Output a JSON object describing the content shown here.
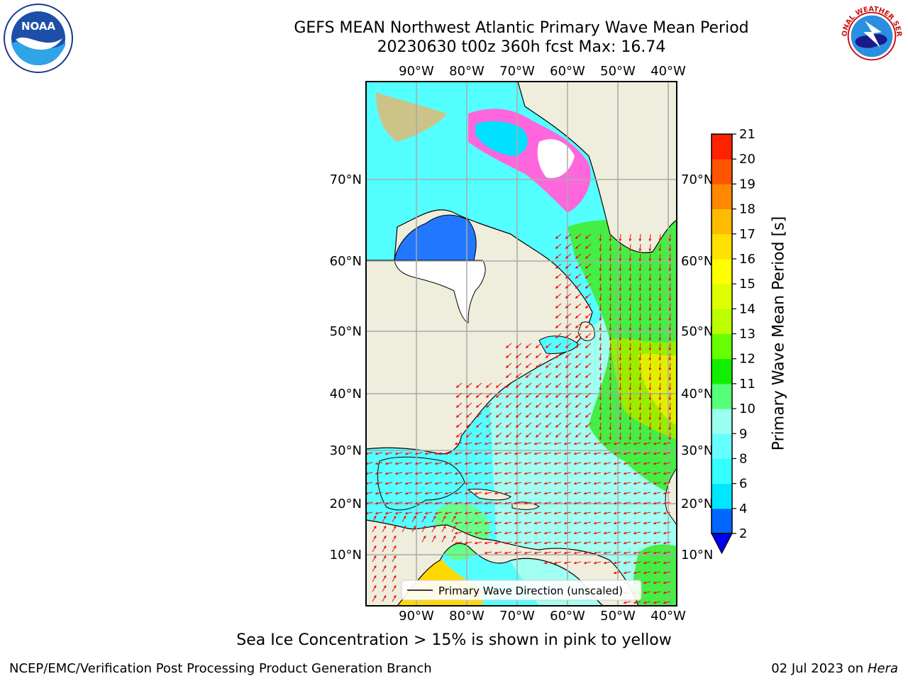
{
  "title": {
    "line1": "GEFS MEAN Northwest Atlantic Primary Wave Mean Period",
    "line2": "20230630 t00z 360h fcst   Max: 16.74"
  },
  "logos": {
    "left": {
      "icon": "noaa-logo-icon",
      "text": "NOAA"
    },
    "right": {
      "icon": "nws-logo-icon",
      "text": "NATIONAL WEATHER SERVICE"
    }
  },
  "map": {
    "lon_labels": [
      "90°W",
      "80°W",
      "70°W",
      "60°W",
      "50°W",
      "40°W"
    ],
    "lat_labels": [
      "70°N",
      "60°N",
      "50°N",
      "40°N",
      "30°N",
      "20°N",
      "10°N"
    ],
    "legend_label": "Primary Wave Direction (unscaled)",
    "ocean_base_color": "#54ffff",
    "land_color": "#efeddc",
    "arrow_color": "#ee1111"
  },
  "colorbar": {
    "label": "Primary Wave Mean Period [s]",
    "ticks": [
      "2",
      "4",
      "6",
      "8",
      "9",
      "10",
      "11",
      "12",
      "13",
      "14",
      "15",
      "16",
      "17",
      "18",
      "19",
      "20",
      "21"
    ],
    "colors": [
      "#0066ff",
      "#00e6ff",
      "#33ffff",
      "#66ffff",
      "#99ffee",
      "#55ff77",
      "#11ee00",
      "#66ff00",
      "#bbff00",
      "#ddff00",
      "#ffff00",
      "#ffe000",
      "#ffbb00",
      "#ff8800",
      "#ff5500",
      "#ff2200"
    ],
    "extend_color": "#0000ee"
  },
  "footer": {
    "sea_ice_note": "Sea Ice Concentration > 15% is shown in pink to yellow",
    "credit": "NCEP/EMC/Verification Post Processing Product Generation Branch",
    "date": "02 Jul 2023 on ",
    "machine": "Hera"
  }
}
